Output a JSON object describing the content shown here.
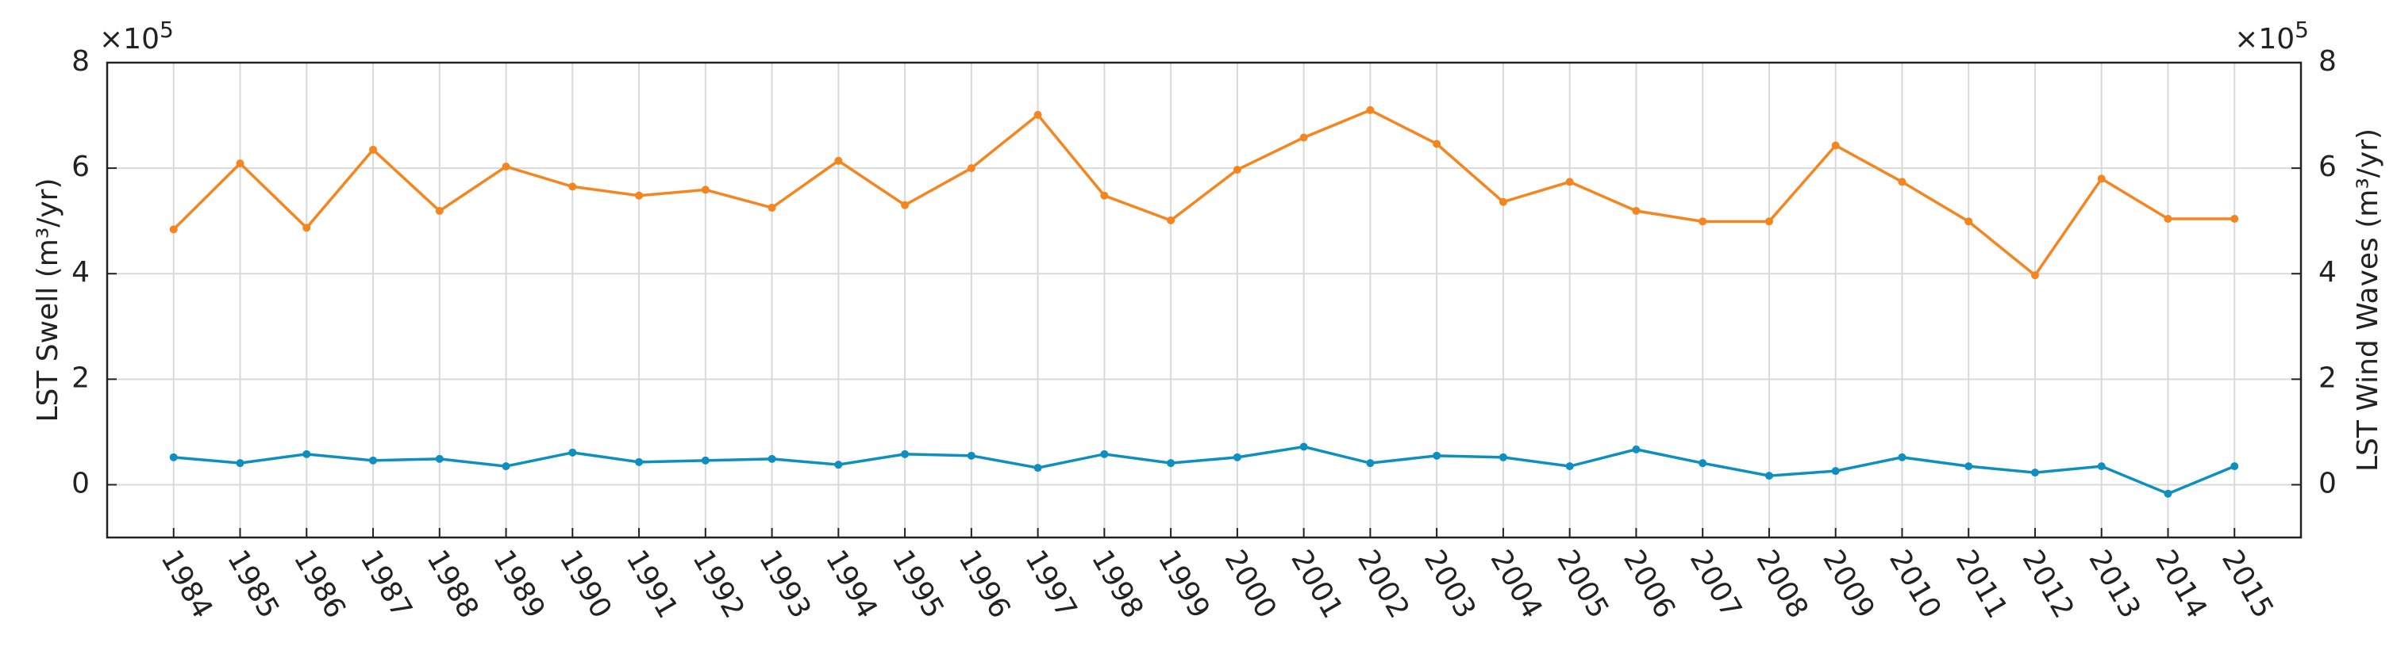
{
  "chart_data": {
    "type": "line",
    "x": [
      1984,
      1985,
      1986,
      1987,
      1988,
      1989,
      1990,
      1991,
      1992,
      1993,
      1994,
      1995,
      1996,
      1997,
      1998,
      1999,
      2000,
      2001,
      2002,
      2003,
      2004,
      2005,
      2006,
      2007,
      2008,
      2009,
      2010,
      2011,
      2012,
      2013,
      2014,
      2015
    ],
    "xlim": [
      1983,
      2016
    ],
    "xticks": [
      1984,
      1985,
      1986,
      1987,
      1988,
      1989,
      1990,
      1991,
      1992,
      1993,
      1994,
      1995,
      1996,
      1997,
      1998,
      1999,
      2000,
      2001,
      2002,
      2003,
      2004,
      2005,
      2006,
      2007,
      2008,
      2009,
      2010,
      2011,
      2012,
      2013,
      2014,
      2015
    ],
    "ylabel": "LST Swell (m³/yr)",
    "y2label": "LST Wind Waves (m³/yr)",
    "y_multiplier": {
      "base": "×10",
      "exponent": "5"
    },
    "y2_multiplier": {
      "base": "×10",
      "exponent": "5"
    },
    "ylim": [
      -100000,
      800000
    ],
    "yticks": [
      {
        "value": 0,
        "label": "0"
      },
      {
        "value": 200000,
        "label": "2"
      },
      {
        "value": 400000,
        "label": "4"
      },
      {
        "value": 600000,
        "label": "6"
      },
      {
        "value": 800000,
        "label": "8"
      }
    ],
    "y2lim": [
      -100000,
      800000
    ],
    "y2ticks": [
      {
        "value": 0,
        "label": "0"
      },
      {
        "value": 200000,
        "label": "2"
      },
      {
        "value": 400000,
        "label": "4"
      },
      {
        "value": 600000,
        "label": "6"
      },
      {
        "value": 800000,
        "label": "8"
      }
    ],
    "grid": true,
    "series": [
      {
        "name": "LST Swell",
        "color": "#f5861f",
        "values": [
          484000,
          609000,
          487000,
          635000,
          519000,
          603000,
          565000,
          548000,
          559000,
          525000,
          614000,
          530000,
          600000,
          701000,
          548000,
          501000,
          597000,
          658000,
          710000,
          646000,
          536000,
          574000,
          519000,
          499000,
          499000,
          643000,
          574000,
          499000,
          397000,
          580000,
          504000,
          504000
        ]
      },
      {
        "name": "LST Wind Waves",
        "color": "#0e8fc0",
        "axis": "y2",
        "values": [
          52000,
          41000,
          58000,
          46000,
          49000,
          35000,
          61000,
          43000,
          46000,
          49000,
          38000,
          58000,
          55000,
          32000,
          58000,
          41000,
          52000,
          72000,
          41000,
          55000,
          52000,
          35000,
          67000,
          41000,
          17000,
          26000,
          52000,
          35000,
          23000,
          35000,
          -17000,
          35000
        ]
      }
    ]
  }
}
